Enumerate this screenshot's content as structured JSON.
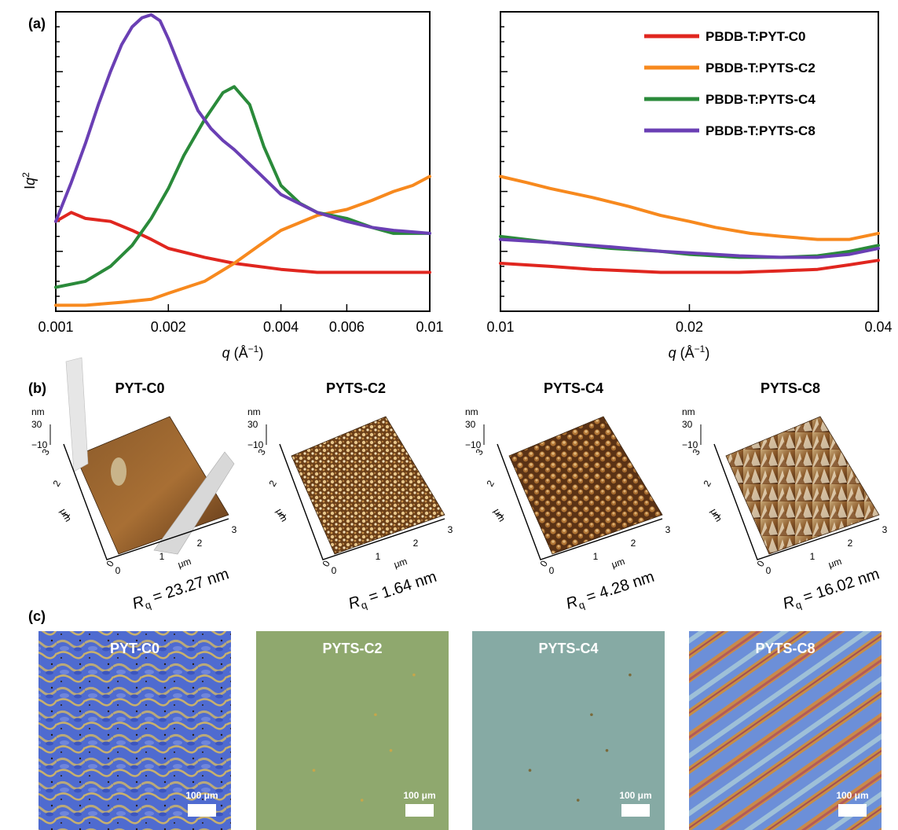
{
  "panels": {
    "a": "(a)",
    "b": "(b)",
    "c": "(c)"
  },
  "chart_data": [
    {
      "type": "line",
      "panel": "a-left",
      "xscale": "log",
      "xlim": [
        0.001,
        0.01
      ],
      "xlabel_parts": [
        "q",
        " (Å",
        "−1",
        ")"
      ],
      "ylabel_parts": [
        "I",
        "q",
        "2"
      ],
      "xticks": [
        {
          "value": 0.001,
          "label": "0.001"
        },
        {
          "value": 0.002,
          "label": "0.002"
        },
        {
          "value": 0.004,
          "label": "0.004"
        },
        {
          "value": 0.006,
          "label": "0.006"
        },
        {
          "value": 0.01,
          "label": "0.01"
        }
      ],
      "ylim": [
        0,
        100
      ],
      "series": [
        {
          "name": "PBDB-T:PYT-C0",
          "color": "#e0261f",
          "x": [
            0.001,
            0.0011,
            0.0012,
            0.0014,
            0.0016,
            0.0018,
            0.002,
            0.0025,
            0.003,
            0.004,
            0.005,
            0.006,
            0.007,
            0.008,
            0.01
          ],
          "y": [
            30,
            33,
            31,
            30,
            27,
            24,
            21,
            18,
            16,
            14,
            13,
            13,
            13,
            13,
            13
          ]
        },
        {
          "name": "PBDB-T:PYTS-C2",
          "color": "#f7891e",
          "x": [
            0.001,
            0.0012,
            0.0015,
            0.0018,
            0.002,
            0.0025,
            0.003,
            0.0035,
            0.004,
            0.005,
            0.006,
            0.007,
            0.008,
            0.009,
            0.01
          ],
          "y": [
            2,
            2,
            3,
            4,
            6,
            10,
            16,
            22,
            27,
            32,
            34,
            37,
            40,
            42,
            45
          ]
        },
        {
          "name": "PBDB-T:PYTS-C4",
          "color": "#2a8a3a",
          "x": [
            0.001,
            0.0012,
            0.0014,
            0.0016,
            0.0018,
            0.002,
            0.0022,
            0.0025,
            0.0028,
            0.003,
            0.0033,
            0.0036,
            0.004,
            0.0045,
            0.005,
            0.006,
            0.007,
            0.008,
            0.01
          ],
          "y": [
            8,
            10,
            15,
            22,
            31,
            41,
            52,
            64,
            73,
            75,
            69,
            55,
            42,
            36,
            33,
            31,
            28,
            26,
            26
          ]
        },
        {
          "name": "PBDB-T:PYTS-C8",
          "color": "#6a3fb4",
          "x": [
            0.001,
            0.0011,
            0.0012,
            0.0013,
            0.0014,
            0.0015,
            0.0016,
            0.0017,
            0.0018,
            0.0019,
            0.002,
            0.0022,
            0.0024,
            0.0026,
            0.0028,
            0.003,
            0.0035,
            0.004,
            0.005,
            0.006,
            0.007,
            0.008,
            0.01
          ],
          "y": [
            30,
            43,
            56,
            69,
            80,
            89,
            95,
            98,
            99,
            97,
            91,
            78,
            67,
            61,
            57,
            54,
            46,
            39,
            33,
            30,
            28,
            27,
            26
          ]
        }
      ]
    },
    {
      "type": "line",
      "panel": "a-right",
      "xscale": "log",
      "xlim": [
        0.01,
        0.04
      ],
      "xlabel_parts": [
        "q",
        " (Å",
        "−1",
        ")"
      ],
      "xticks": [
        {
          "value": 0.01,
          "label": "0.01"
        },
        {
          "value": 0.02,
          "label": "0.02"
        },
        {
          "value": 0.04,
          "label": "0.04"
        }
      ],
      "ylim": [
        0,
        100
      ],
      "legend": "top-right",
      "series": [
        {
          "name": "PBDB-T:PYT-C0",
          "color": "#e0261f",
          "x": [
            0.01,
            0.012,
            0.014,
            0.016,
            0.018,
            0.02,
            0.024,
            0.028,
            0.032,
            0.036,
            0.04
          ],
          "y": [
            16,
            15,
            14,
            13.5,
            13,
            13,
            13,
            13.5,
            14,
            15.5,
            17
          ]
        },
        {
          "name": "PBDB-T:PYTS-C2",
          "color": "#f7891e",
          "x": [
            0.01,
            0.011,
            0.012,
            0.014,
            0.016,
            0.018,
            0.02,
            0.022,
            0.025,
            0.028,
            0.032,
            0.036,
            0.04
          ],
          "y": [
            45,
            43,
            41,
            38,
            35,
            32,
            30,
            28,
            26,
            25,
            24,
            24,
            26
          ]
        },
        {
          "name": "PBDB-T:PYTS-C4",
          "color": "#2a8a3a",
          "x": [
            0.01,
            0.012,
            0.015,
            0.018,
            0.02,
            0.024,
            0.028,
            0.032,
            0.036,
            0.04
          ],
          "y": [
            25,
            23,
            21,
            20,
            19,
            18,
            18,
            18.5,
            20,
            22
          ]
        },
        {
          "name": "PBDB-T:PYTS-C8",
          "color": "#6a3fb4",
          "x": [
            0.01,
            0.012,
            0.015,
            0.018,
            0.02,
            0.024,
            0.028,
            0.032,
            0.036,
            0.04
          ],
          "y": [
            24,
            23,
            21.5,
            20,
            19.5,
            18.5,
            18,
            18,
            19,
            21
          ]
        }
      ]
    }
  ],
  "afm": {
    "axis_unit": "μm",
    "z_unit": "nm",
    "z_top": "30",
    "z_bottom": "−10",
    "ticks": [
      "0",
      "1",
      "2",
      "3"
    ],
    "rq_symbol": "R",
    "rq_sub": "q",
    "panels": [
      {
        "title": "PYT-C0",
        "rq_value": " = 23.27 nm"
      },
      {
        "title": "PYTS-C2",
        "rq_value": " = 1.64 nm"
      },
      {
        "title": "PYTS-C4",
        "rq_value": " = 4.28 nm"
      },
      {
        "title": "PYTS-C8",
        "rq_value": " = 16.02 nm"
      }
    ]
  },
  "micrographs": {
    "scale_bar_label": "100 μm",
    "panels": [
      {
        "title": "PYT-C0"
      },
      {
        "title": "PYTS-C2"
      },
      {
        "title": "PYTS-C4"
      },
      {
        "title": "PYTS-C8"
      }
    ]
  }
}
